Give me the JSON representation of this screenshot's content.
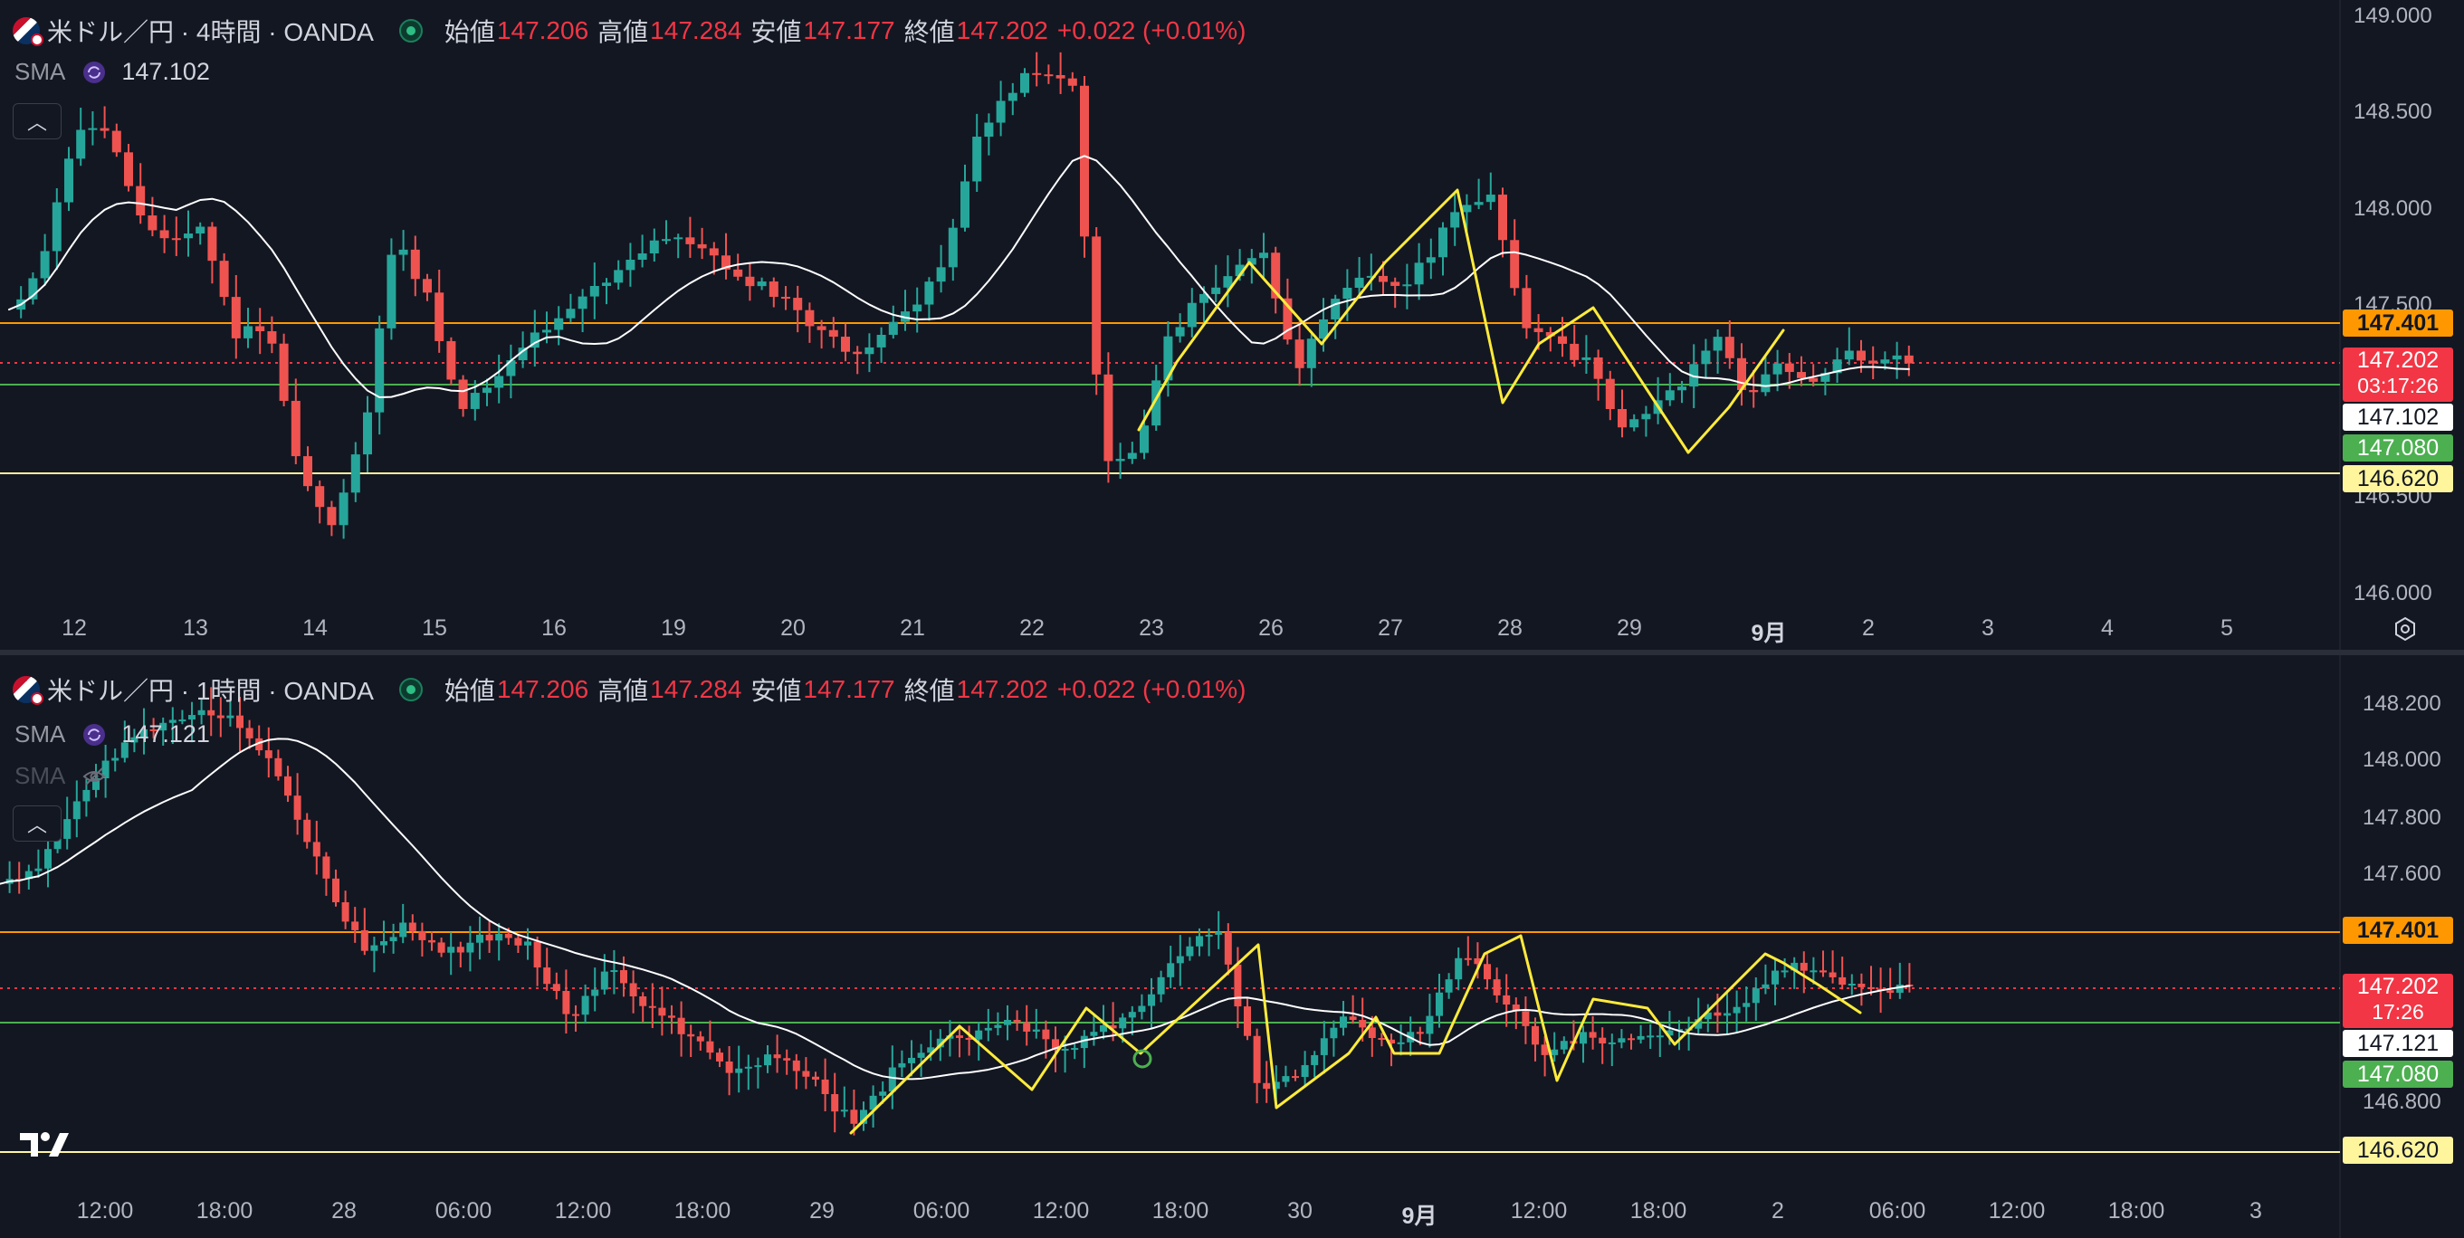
{
  "top": {
    "symbol": "米ドル／円 · 4時間 · OANDA",
    "ohlc": {
      "open_label": "始値",
      "open": "147.206",
      "high_label": "高値",
      "high": "147.284",
      "low_label": "安値",
      "low": "147.177",
      "close_label": "終値",
      "close": "147.202",
      "change": "+0.022 (+0.01%)"
    },
    "indicator": {
      "name": "SMA",
      "value": "147.102"
    },
    "y_ticks": [
      "149.000",
      "148.500",
      "148.000",
      "147.500",
      "146.500",
      "146.000"
    ],
    "x_ticks": [
      "12",
      "13",
      "14",
      "15",
      "16",
      "19",
      "20",
      "21",
      "22",
      "23",
      "26",
      "27",
      "28",
      "29",
      "9月",
      "2",
      "3",
      "4",
      "5"
    ],
    "tags": {
      "resistance": "147.401",
      "last_price": "147.202",
      "countdown": "03:17:26",
      "sma": "147.102",
      "support_green": "147.080",
      "support_yellow": "146.620"
    }
  },
  "bottom": {
    "symbol": "米ドル／円 · 1時間 · OANDA",
    "ohlc": {
      "open_label": "始値",
      "open": "147.206",
      "high_label": "高値",
      "high": "147.284",
      "low_label": "安値",
      "low": "147.177",
      "close_label": "終値",
      "close": "147.202",
      "change": "+0.022 (+0.01%)"
    },
    "indicator": {
      "name": "SMA",
      "value": "147.121"
    },
    "indicator2": {
      "name": "SMA"
    },
    "y_ticks": [
      "148.200",
      "148.000",
      "147.800",
      "147.600",
      "146.800"
    ],
    "x_ticks": [
      "12:00",
      "18:00",
      "28",
      "06:00",
      "12:00",
      "18:00",
      "29",
      "06:00",
      "12:00",
      "18:00",
      "30",
      "9月",
      "12:00",
      "18:00",
      "2",
      "06:00",
      "12:00",
      "18:00",
      "3"
    ],
    "tags": {
      "resistance": "147.401",
      "last_price": "147.202",
      "countdown": "17:26",
      "sma": "147.121",
      "support_green": "147.080",
      "support_yellow": "146.620"
    }
  },
  "colors": {
    "up": "#26a69a",
    "down": "#ef5350",
    "resistance": "#ff9800",
    "support_green": "#4caf50",
    "support_yellow": "#fff59d",
    "drawing": "#ffeb3b",
    "sma": "#ffffff"
  }
}
